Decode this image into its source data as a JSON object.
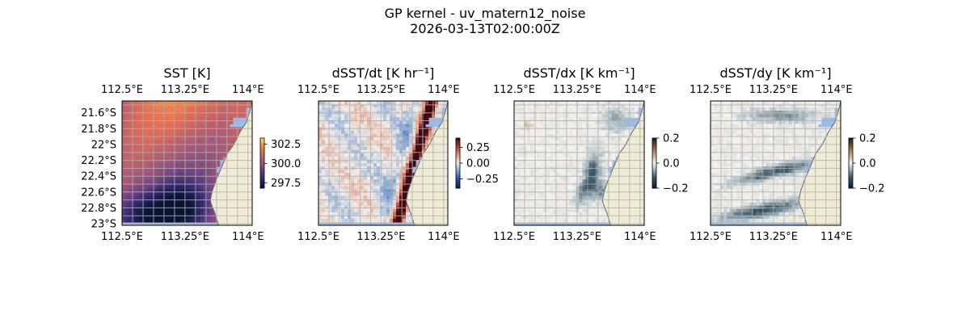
{
  "figure": {
    "title": "GP kernel - uv_matern12_noise",
    "subtitle": "2026-03-13T02:00:00Z"
  },
  "chart_data": [
    {
      "type": "heatmap",
      "title": "SST [K]",
      "x_ticks": [
        "112.5°E",
        "113.25°E",
        "114°E"
      ],
      "y_ticks": [
        "21.6°S",
        "21.8°S",
        "22°S",
        "22.2°S",
        "22.4°S",
        "22.6°S",
        "22.8°S",
        "23°S"
      ],
      "xlim": [
        112.5,
        114.05
      ],
      "ylim": [
        -23.02,
        -21.45
      ],
      "colorbar": {
        "ticks": [
          "302.5",
          "300.0",
          "297.5"
        ],
        "range": [
          296.8,
          303.3
        ],
        "colormap": "thermal"
      },
      "field": "sst"
    },
    {
      "type": "heatmap",
      "title": "dSST/dt [K hr⁻¹]",
      "x_ticks": [
        "112.5°E",
        "113.25°E",
        "114°E"
      ],
      "xlim": [
        112.5,
        114.05
      ],
      "ylim": [
        -23.02,
        -21.45
      ],
      "colorbar": {
        "ticks": [
          "0.25",
          "0.00",
          "−0.25"
        ],
        "range": [
          -0.4,
          0.4
        ],
        "colormap": "balance"
      },
      "field": "ddt"
    },
    {
      "type": "heatmap",
      "title": "dSST/dx [K km⁻¹]",
      "x_ticks": [
        "112.5°E",
        "113.25°E",
        "114°E"
      ],
      "xlim": [
        112.5,
        114.05
      ],
      "ylim": [
        -23.02,
        -21.45
      ],
      "colorbar": {
        "ticks": [
          "0.2",
          "0.0",
          "−0.2"
        ],
        "range": [
          -0.2,
          0.2
        ],
        "colormap": "diff"
      },
      "field": "ddx"
    },
    {
      "type": "heatmap",
      "title": "dSST/dy [K km⁻¹]",
      "x_ticks": [
        "112.5°E",
        "113.25°E",
        "114°E"
      ],
      "xlim": [
        112.5,
        114.05
      ],
      "ylim": [
        -23.02,
        -21.45
      ],
      "colorbar": {
        "ticks": [
          "0.2",
          "0.0",
          "−0.2"
        ],
        "range": [
          -0.2,
          0.2
        ],
        "colormap": "diff"
      },
      "field": "ddy"
    }
  ],
  "colors": {
    "land": "#efebd5",
    "water_mask": "#9fbbe3",
    "gridline": "#b0b0b0",
    "coast": "#666666"
  }
}
